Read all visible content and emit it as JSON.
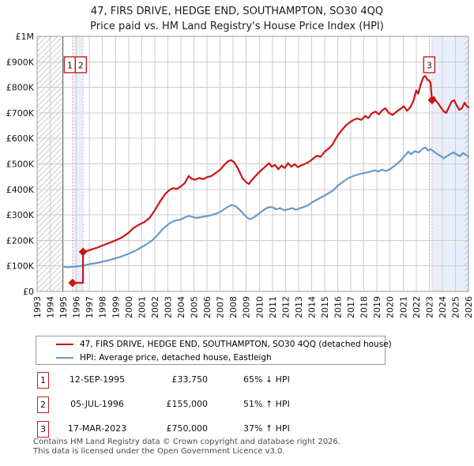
{
  "title": {
    "line1": "47, FIRS DRIVE, HEDGE END, SOUTHAMPTON, SO30 4QQ",
    "line2": "Price paid vs. HM Land Registry's House Price Index (HPI)"
  },
  "legend": {
    "items": [
      {
        "label": "47, FIRS DRIVE, HEDGE END, SOUTHAMPTON, SO30 4QQ (detached house)",
        "color": "#cc1414"
      },
      {
        "label": "HPI: Average price, detached house, Eastleigh",
        "color": "#6899cb"
      }
    ]
  },
  "transactions": [
    {
      "num": "1",
      "date": "12-SEP-1995",
      "price": "£33,750",
      "hpi_pct": "65% ↓ HPI",
      "year": 1995.71,
      "value_k": 33.75
    },
    {
      "num": "2",
      "date": "05-JUL-1996",
      "price": "£155,000",
      "hpi_pct": "51% ↑ HPI",
      "year": 1996.51,
      "value_k": 155
    },
    {
      "num": "3",
      "date": "17-MAR-2023",
      "price": "£750,000",
      "hpi_pct": "37% ↑ HPI",
      "year": 2023.21,
      "value_k": 750
    }
  ],
  "footer": {
    "line1": "Contains HM Land Registry data © Crown copyright and database right 2026.",
    "line2": "This data is licensed under the Open Government Licence v3.0."
  },
  "chart_data": {
    "type": "line",
    "title": "47, FIRS DRIVE, HEDGE END, SOUTHAMPTON, SO30 4QQ",
    "subtitle": "Price paid vs. HM Land Registry's House Price Index (HPI)",
    "xlim": [
      1993,
      2026
    ],
    "ylim": [
      0,
      1000
    ],
    "y_units": "GBP thousands",
    "grid": true,
    "legend_position": "below",
    "x_ticks": [
      1993,
      1994,
      1995,
      1996,
      1997,
      1998,
      1999,
      2000,
      2001,
      2002,
      2003,
      2004,
      2005,
      2006,
      2007,
      2008,
      2009,
      2010,
      2011,
      2012,
      2013,
      2014,
      2015,
      2016,
      2017,
      2018,
      2019,
      2020,
      2021,
      2022,
      2023,
      2024,
      2025,
      2026
    ],
    "y_ticks": [
      [
        0,
        "£0"
      ],
      [
        100,
        "£100K"
      ],
      [
        200,
        "£200K"
      ],
      [
        300,
        "£300K"
      ],
      [
        400,
        "£400K"
      ],
      [
        500,
        "£500K"
      ],
      [
        600,
        "£600K"
      ],
      [
        700,
        "£700K"
      ],
      [
        800,
        "£800K"
      ],
      [
        900,
        "£900K"
      ],
      [
        1000,
        "£1M"
      ]
    ],
    "colors": {
      "grid": "#cccccc",
      "border": "#999999",
      "hatch": "#bfbfbf",
      "band": "#e9effa",
      "dashed_line": "#ef8989",
      "data_start_line": "#666666",
      "marker_box_border": "#c02020"
    },
    "shaded_bands": [
      [
        1995.71,
        1996.51
      ],
      [
        2023.21,
        2026
      ]
    ],
    "hatched_bands": [
      [
        1993,
        1994.96
      ],
      [
        2025.7,
        2026
      ]
    ],
    "transaction_lines": [
      1995.71,
      1996.51,
      2023.21
    ],
    "series": [
      {
        "name": "47, FIRS DRIVE, HEDGE END, SOUTHAMPTON, SO30 4QQ (detached house)",
        "color": "#cc1414",
        "points": [
          [
            1995.71,
            33.75
          ],
          [
            1996.51,
            33.75
          ],
          [
            1996.51,
            155
          ],
          [
            1997.0,
            162
          ],
          [
            1997.5,
            170
          ],
          [
            1998.0,
            180
          ],
          [
            1998.5,
            190
          ],
          [
            1999.0,
            200
          ],
          [
            1999.5,
            212
          ],
          [
            2000.0,
            230
          ],
          [
            2000.4,
            250
          ],
          [
            2000.8,
            262
          ],
          [
            2001.2,
            272
          ],
          [
            2001.6,
            288
          ],
          [
            2002.0,
            318
          ],
          [
            2002.4,
            352
          ],
          [
            2002.8,
            382
          ],
          [
            2003.1,
            397
          ],
          [
            2003.4,
            405
          ],
          [
            2003.7,
            402
          ],
          [
            2004.0,
            412
          ],
          [
            2004.3,
            425
          ],
          [
            2004.6,
            453
          ],
          [
            2004.8,
            442
          ],
          [
            2005.1,
            438
          ],
          [
            2005.4,
            445
          ],
          [
            2005.7,
            440
          ],
          [
            2006.0,
            448
          ],
          [
            2006.3,
            452
          ],
          [
            2006.6,
            462
          ],
          [
            2007.0,
            477
          ],
          [
            2007.3,
            495
          ],
          [
            2007.6,
            510
          ],
          [
            2007.85,
            515
          ],
          [
            2008.1,
            505
          ],
          [
            2008.4,
            478
          ],
          [
            2008.7,
            445
          ],
          [
            2009.0,
            428
          ],
          [
            2009.2,
            421
          ],
          [
            2009.45,
            438
          ],
          [
            2009.7,
            452
          ],
          [
            2010.0,
            468
          ],
          [
            2010.3,
            482
          ],
          [
            2010.55,
            494
          ],
          [
            2010.75,
            503
          ],
          [
            2010.95,
            489
          ],
          [
            2011.2,
            496
          ],
          [
            2011.45,
            479
          ],
          [
            2011.7,
            493
          ],
          [
            2011.95,
            484
          ],
          [
            2012.2,
            503
          ],
          [
            2012.45,
            489
          ],
          [
            2012.7,
            499
          ],
          [
            2012.95,
            487
          ],
          [
            2013.2,
            494
          ],
          [
            2013.5,
            500
          ],
          [
            2013.8,
            508
          ],
          [
            2014.1,
            520
          ],
          [
            2014.4,
            532
          ],
          [
            2014.7,
            528
          ],
          [
            2015.0,
            548
          ],
          [
            2015.3,
            560
          ],
          [
            2015.6,
            576
          ],
          [
            2016.0,
            612
          ],
          [
            2016.3,
            632
          ],
          [
            2016.6,
            650
          ],
          [
            2016.9,
            662
          ],
          [
            2017.2,
            672
          ],
          [
            2017.5,
            678
          ],
          [
            2017.8,
            672
          ],
          [
            2018.1,
            688
          ],
          [
            2018.35,
            680
          ],
          [
            2018.6,
            698
          ],
          [
            2018.9,
            705
          ],
          [
            2019.15,
            694
          ],
          [
            2019.4,
            710
          ],
          [
            2019.65,
            718
          ],
          [
            2019.9,
            700
          ],
          [
            2020.2,
            692
          ],
          [
            2020.5,
            705
          ],
          [
            2020.8,
            716
          ],
          [
            2021.05,
            726
          ],
          [
            2021.3,
            708
          ],
          [
            2021.55,
            722
          ],
          [
            2021.8,
            748
          ],
          [
            2022.0,
            788
          ],
          [
            2022.15,
            775
          ],
          [
            2022.35,
            812
          ],
          [
            2022.55,
            840
          ],
          [
            2022.7,
            845
          ],
          [
            2022.85,
            830
          ],
          [
            2023.0,
            826
          ],
          [
            2023.1,
            818
          ],
          [
            2023.21,
            750
          ],
          [
            2023.35,
            762
          ],
          [
            2023.5,
            748
          ],
          [
            2023.7,
            736
          ],
          [
            2023.9,
            720
          ],
          [
            2024.1,
            706
          ],
          [
            2024.3,
            700
          ],
          [
            2024.5,
            722
          ],
          [
            2024.7,
            744
          ],
          [
            2024.9,
            750
          ],
          [
            2025.1,
            729
          ],
          [
            2025.3,
            712
          ],
          [
            2025.5,
            718
          ],
          [
            2025.7,
            740
          ],
          [
            2025.85,
            728
          ],
          [
            2026.0,
            722
          ]
        ]
      },
      {
        "name": "HPI: Average price, detached house, Eastleigh",
        "color": "#6899cb",
        "points": [
          [
            1995.0,
            96
          ],
          [
            1995.4,
            95
          ],
          [
            1995.8,
            97
          ],
          [
            1996.2,
            99
          ],
          [
            1996.6,
            102
          ],
          [
            1997.0,
            107
          ],
          [
            1997.4,
            110
          ],
          [
            1997.8,
            114
          ],
          [
            1998.2,
            119
          ],
          [
            1998.6,
            124
          ],
          [
            1999.0,
            130
          ],
          [
            1999.4,
            136
          ],
          [
            1999.8,
            144
          ],
          [
            2000.2,
            152
          ],
          [
            2000.6,
            162
          ],
          [
            2001.0,
            174
          ],
          [
            2001.4,
            186
          ],
          [
            2001.8,
            200
          ],
          [
            2002.2,
            220
          ],
          [
            2002.6,
            244
          ],
          [
            2003.0,
            262
          ],
          [
            2003.3,
            272
          ],
          [
            2003.6,
            278
          ],
          [
            2004.0,
            282
          ],
          [
            2004.3,
            290
          ],
          [
            2004.6,
            296
          ],
          [
            2004.9,
            292
          ],
          [
            2005.2,
            288
          ],
          [
            2005.5,
            291
          ],
          [
            2005.8,
            294
          ],
          [
            2006.1,
            296
          ],
          [
            2006.4,
            300
          ],
          [
            2006.7,
            305
          ],
          [
            2007.0,
            312
          ],
          [
            2007.3,
            322
          ],
          [
            2007.6,
            332
          ],
          [
            2007.9,
            339
          ],
          [
            2008.2,
            333
          ],
          [
            2008.5,
            320
          ],
          [
            2008.8,
            303
          ],
          [
            2009.1,
            288
          ],
          [
            2009.3,
            283
          ],
          [
            2009.55,
            290
          ],
          [
            2009.8,
            298
          ],
          [
            2010.1,
            310
          ],
          [
            2010.4,
            322
          ],
          [
            2010.7,
            330
          ],
          [
            2011.0,
            330
          ],
          [
            2011.3,
            322
          ],
          [
            2011.6,
            327
          ],
          [
            2011.9,
            318
          ],
          [
            2012.2,
            322
          ],
          [
            2012.5,
            327
          ],
          [
            2012.8,
            320
          ],
          [
            2013.1,
            326
          ],
          [
            2013.4,
            331
          ],
          [
            2013.7,
            337
          ],
          [
            2014.0,
            348
          ],
          [
            2014.4,
            360
          ],
          [
            2014.8,
            370
          ],
          [
            2015.2,
            382
          ],
          [
            2015.6,
            394
          ],
          [
            2016.0,
            414
          ],
          [
            2016.4,
            430
          ],
          [
            2016.8,
            444
          ],
          [
            2017.2,
            453
          ],
          [
            2017.6,
            459
          ],
          [
            2018.0,
            464
          ],
          [
            2018.4,
            468
          ],
          [
            2018.8,
            475
          ],
          [
            2019.1,
            470
          ],
          [
            2019.4,
            477
          ],
          [
            2019.7,
            472
          ],
          [
            2020.0,
            480
          ],
          [
            2020.4,
            494
          ],
          [
            2020.8,
            512
          ],
          [
            2021.1,
            530
          ],
          [
            2021.4,
            548
          ],
          [
            2021.6,
            538
          ],
          [
            2021.9,
            550
          ],
          [
            2022.2,
            545
          ],
          [
            2022.5,
            560
          ],
          [
            2022.7,
            565
          ],
          [
            2022.9,
            552
          ],
          [
            2023.1,
            558
          ],
          [
            2023.3,
            550
          ],
          [
            2023.5,
            543
          ],
          [
            2023.7,
            536
          ],
          [
            2023.9,
            530
          ],
          [
            2024.1,
            522
          ],
          [
            2024.35,
            530
          ],
          [
            2024.6,
            538
          ],
          [
            2024.85,
            545
          ],
          [
            2025.1,
            537
          ],
          [
            2025.35,
            530
          ],
          [
            2025.6,
            543
          ],
          [
            2025.8,
            535
          ],
          [
            2026.0,
            530
          ]
        ]
      }
    ],
    "annotations": [
      {
        "num": "1",
        "year": 1995.71,
        "value_k": 33.75
      },
      {
        "num": "2",
        "year": 1996.51,
        "value_k": 155
      },
      {
        "num": "3",
        "year": 2023.21,
        "value_k": 750
      }
    ]
  }
}
